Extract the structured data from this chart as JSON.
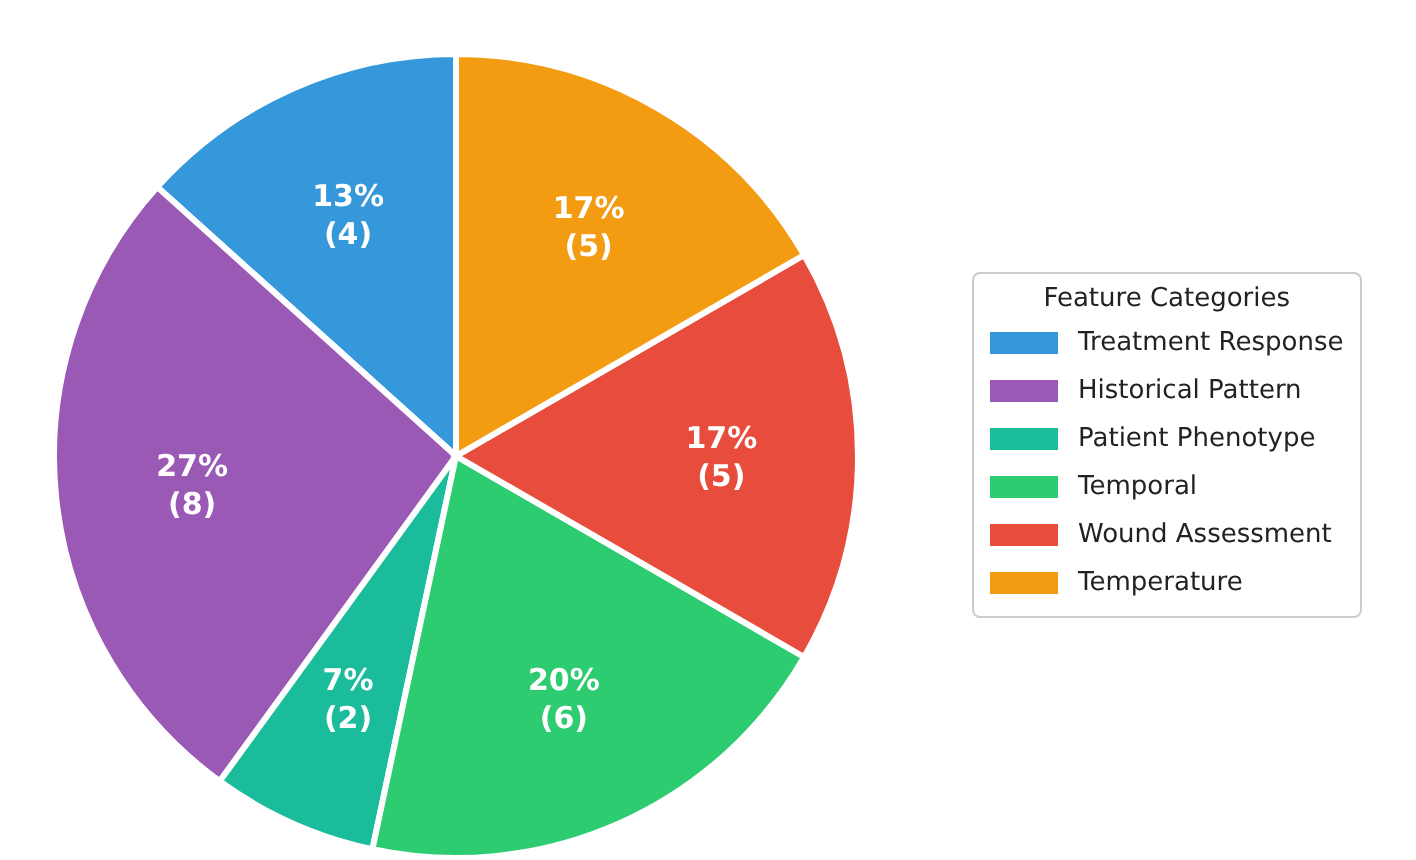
{
  "chart_data": {
    "type": "pie",
    "categories": [
      "Treatment Response",
      "Historical Pattern",
      "Patient Phenotype",
      "Temporal",
      "Wound Assessment",
      "Temperature"
    ],
    "values": [
      4,
      8,
      2,
      6,
      5,
      5
    ],
    "colors": [
      "#3498db",
      "#9b59b6",
      "#1abc9c",
      "#2ecc71",
      "#e74c3c",
      "#f39c12"
    ],
    "value_labels": [
      "13%\n(4)",
      "27%\n(8)",
      "7%\n(2)",
      "20%\n(6)",
      "17%\n(5)",
      "17%\n(5)"
    ],
    "legend_title": "Feature Categories",
    "legend": "right"
  }
}
